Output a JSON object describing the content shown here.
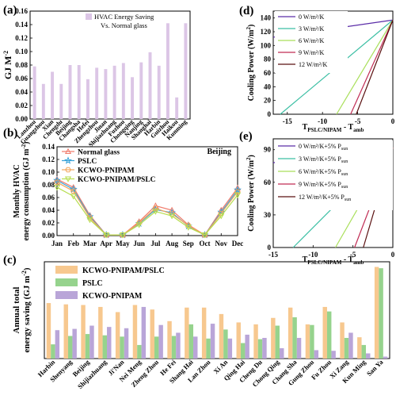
{
  "colors": {
    "hvac_bar": "#dcc6e6",
    "normal": "#f07a6a",
    "pslc": "#3aa3d8",
    "kcwo": "#f2a65c",
    "kcwo_pslc": "#b6dd4e",
    "c_kcwo_pslc": "#f7c88f",
    "c_pslc": "#96d38d",
    "c_kcwo": "#b9a5d8",
    "d0": "#5b2da8",
    "d3": "#3cbfa4",
    "d6": "#a9df5a",
    "d9": "#c02c54",
    "d12": "#5a1010"
  },
  "chart_data": [
    {
      "panel": "(a)",
      "type": "bar",
      "legend": [
        "HVAC Energy Saving",
        "Vs. Normal glass"
      ],
      "ylabel": "GJ M",
      "ylabel_sup": "-2",
      "ylim": [
        0,
        0.16
      ],
      "yticks": [
        "0.00",
        "0.02",
        "0.04",
        "0.06",
        "0.08",
        "0.10",
        "0.12",
        "0.14",
        "0.16"
      ],
      "categories": [
        "Lanzhou",
        "Guangzhou",
        "Xian",
        "Chengdu",
        "Beijing",
        "Changsha",
        "Hefei",
        "Zhengzhou",
        "Jinan",
        "Shijiazhuang",
        "Fuzhou",
        "Chongqing",
        "Nanjing",
        "Shanghai",
        "Harbin",
        "Guizhou",
        "Haikou",
        "Kunming"
      ],
      "values": [
        0.078,
        0.052,
        0.07,
        0.052,
        0.08,
        0.08,
        0.059,
        0.076,
        0.074,
        0.079,
        0.083,
        0.062,
        0.084,
        0.099,
        0.079,
        0.142,
        0.032,
        0.142
      ]
    },
    {
      "panel": "(b)",
      "type": "line",
      "city_label": "Beijing",
      "ylabel": "Monthly HVAC energy consumption (GJ m-2)",
      "ylabel_lines": [
        "Monthly HVAC",
        "energy consumption (GJ m"
      ],
      "ylabel_sup": "-2",
      "ylabel_close": ")",
      "ylim": [
        0,
        0.14
      ],
      "yticks": [
        "0.00",
        "0.02",
        "0.04",
        "0.06",
        "0.08",
        "0.10",
        "0.12",
        "0.14"
      ],
      "categories": [
        "Jan",
        "Feb",
        "Mar",
        "Apr",
        "May",
        "Jun",
        "Jul",
        "Aug",
        "Sep",
        "Oct",
        "Nov",
        "Dec"
      ],
      "series": [
        {
          "name": "Normal glass",
          "values": [
            0.089,
            0.076,
            0.032,
            0.001,
            0.001,
            0.022,
            0.047,
            0.04,
            0.017,
            0.001,
            0.04,
            0.075
          ]
        },
        {
          "name": "PSLC",
          "values": [
            0.087,
            0.073,
            0.03,
            0.001,
            0.001,
            0.019,
            0.041,
            0.036,
            0.015,
            0.001,
            0.037,
            0.072
          ]
        },
        {
          "name": "KCWO-PNIPAM",
          "values": [
            0.084,
            0.07,
            0.028,
            0.001,
            0.001,
            0.02,
            0.043,
            0.034,
            0.016,
            0.001,
            0.035,
            0.069
          ]
        },
        {
          "name": "KCWO-PNIPAM/PSLC",
          "values": [
            0.076,
            0.062,
            0.025,
            0.001,
            0.001,
            0.017,
            0.038,
            0.031,
            0.013,
            0.001,
            0.031,
            0.064
          ]
        }
      ]
    },
    {
      "panel": "(c)",
      "type": "bar",
      "ylabel_lines": [
        "Annual total",
        "energy saving (GJ m"
      ],
      "ylabel_sup": "-2",
      "ylabel_close": ")",
      "ylim": [
        0,
        0.15
      ],
      "categories": [
        "Harbin",
        "Shenyang",
        "Beijing",
        "Shijiazhuang",
        "Ji'Nan",
        "Nei Meng",
        "Zheng Zhou",
        "He Fei",
        "Shang Hai",
        "Lan Zhou",
        "Xi An",
        "Qing Hai",
        "Cheng Du",
        "Chong Qing",
        "Chang Sha",
        "Gung Zhou",
        "Fu Zhou",
        "Xi Zang",
        "Kun Ming",
        "San Ya"
      ],
      "series": [
        {
          "name": "KCWO-PNIPAM/PSLC",
          "values": [
            0.086,
            0.084,
            0.083,
            0.08,
            0.072,
            0.083,
            0.076,
            0.058,
            0.079,
            0.079,
            0.069,
            0.056,
            0.053,
            0.063,
            0.079,
            0.053,
            0.08,
            0.056,
            0.033,
            0.142
          ]
        },
        {
          "name": "PSLC",
          "values": [
            0.022,
            0.035,
            0.038,
            0.036,
            0.034,
            0.021,
            0.034,
            0.035,
            0.053,
            0.031,
            0.045,
            0.024,
            0.03,
            0.051,
            0.064,
            0.052,
            0.073,
            0.032,
            0.021,
            0.14
          ]
        },
        {
          "name": "KCWO-PNIPAM",
          "values": [
            0.044,
            0.046,
            0.051,
            0.049,
            0.047,
            0.08,
            0.052,
            0.04,
            0.034,
            0.054,
            0.031,
            0.037,
            0.032,
            0.016,
            0.032,
            0.013,
            0.012,
            0.04,
            0.008,
            0.003
          ]
        }
      ]
    },
    {
      "panel": "(d)",
      "type": "line",
      "xlabel_main": "T",
      "xlabel_sub": "PSLC/NIPAM",
      "xlabel_rest": " - T",
      "xlabel_sub2": "amb",
      "ylabel": "Cooling Power (W/m",
      "ylabel_sup": "2",
      "ylabel_close": ")",
      "xlim": [
        -17,
        0
      ],
      "ylim": [
        0,
        150
      ],
      "xticks": [
        "-15",
        "-10",
        "-5",
        "0"
      ],
      "yticks": [
        "0",
        "20",
        "40",
        "60",
        "80",
        "100",
        "120",
        "140"
      ],
      "series": [
        {
          "name": "0 W/m²/K",
          "x": [
            -17,
            0
          ],
          "y": [
            112,
            137
          ]
        },
        {
          "name": "3 W/m²/K",
          "x": [
            -16,
            0
          ],
          "y": [
            0,
            137
          ]
        },
        {
          "name": "6 W/m²/K",
          "x": [
            -8,
            0
          ],
          "y": [
            0,
            137
          ]
        },
        {
          "name": "9 W/m²/K",
          "x": [
            -6,
            0
          ],
          "y": [
            0,
            137
          ]
        },
        {
          "name": "12 W/m²/K",
          "x": [
            -5.2,
            0
          ],
          "y": [
            0,
            137
          ]
        }
      ]
    },
    {
      "panel": "(e)",
      "type": "line",
      "xlabel_main": "T",
      "xlabel_sub": "PSLC/NIPAM",
      "xlabel_rest": " - T",
      "xlabel_sub2": "amb",
      "ylabel": "Cooling Power (W/m",
      "ylabel_sup": "2",
      "ylabel_close": ")",
      "xlim": [
        -15,
        0
      ],
      "ylim": [
        0,
        100
      ],
      "xticks": [
        "-15",
        "-10",
        "-5",
        "0"
      ],
      "yticks": [
        "0",
        "30",
        "60",
        "90"
      ],
      "series": [
        {
          "name": "0 W/m²/K+5% P",
          "name_sub": "sun",
          "x": [
            -15,
            0
          ],
          "y": [
            78,
            92
          ]
        },
        {
          "name": "3 W/m²/K+5% P",
          "name_sub": "sun",
          "x": [
            -12.5,
            0
          ],
          "y": [
            0,
            92
          ]
        },
        {
          "name": "6 W/m²/K+5% P",
          "name_sub": "sun",
          "x": [
            -7.2,
            0
          ],
          "y": [
            0,
            92
          ]
        },
        {
          "name": "9 W/m²/K+5% P",
          "name_sub": "sun",
          "x": [
            -4.8,
            0
          ],
          "y": [
            0,
            92
          ]
        },
        {
          "name": "12 W/m²/K+5% P",
          "name_sub": "sun",
          "x": [
            -3.7,
            0
          ],
          "y": [
            0,
            92
          ]
        }
      ]
    }
  ]
}
